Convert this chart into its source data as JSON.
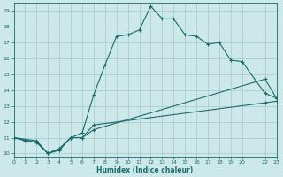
{
  "xlabel": "Humidex (Indice chaleur)",
  "bg_color": "#cce8e8",
  "grid_color": "#aacfcf",
  "line_color": "#1a6b6b",
  "series1_x": [
    0,
    1,
    2,
    3,
    4,
    5,
    6,
    7,
    8,
    9,
    10,
    11,
    12,
    13,
    14,
    15,
    16,
    17,
    18,
    19,
    20,
    22,
    23
  ],
  "series1_y": [
    11.0,
    10.8,
    10.7,
    10.0,
    10.3,
    11.0,
    11.3,
    13.7,
    15.6,
    17.4,
    17.5,
    17.8,
    19.3,
    18.5,
    18.5,
    17.5,
    17.4,
    16.9,
    17.0,
    15.9,
    15.8,
    13.8,
    13.5
  ],
  "series2_x": [
    0,
    2,
    3,
    4,
    5,
    6,
    7,
    22,
    23
  ],
  "series2_y": [
    11.0,
    10.8,
    10.0,
    10.2,
    11.0,
    11.0,
    11.5,
    14.7,
    13.5
  ],
  "series3_x": [
    0,
    2,
    3,
    4,
    5,
    6,
    7,
    22,
    23
  ],
  "series3_y": [
    11.0,
    10.7,
    10.0,
    10.3,
    11.0,
    11.0,
    11.8,
    13.2,
    13.3
  ],
  "xlim": [
    0,
    23
  ],
  "ylim": [
    9.8,
    19.5
  ],
  "yticks": [
    10,
    11,
    12,
    13,
    14,
    15,
    16,
    17,
    18,
    19
  ],
  "xticks": [
    0,
    1,
    2,
    3,
    4,
    5,
    6,
    7,
    8,
    9,
    10,
    11,
    12,
    13,
    14,
    15,
    16,
    17,
    18,
    19,
    20,
    22,
    23
  ]
}
